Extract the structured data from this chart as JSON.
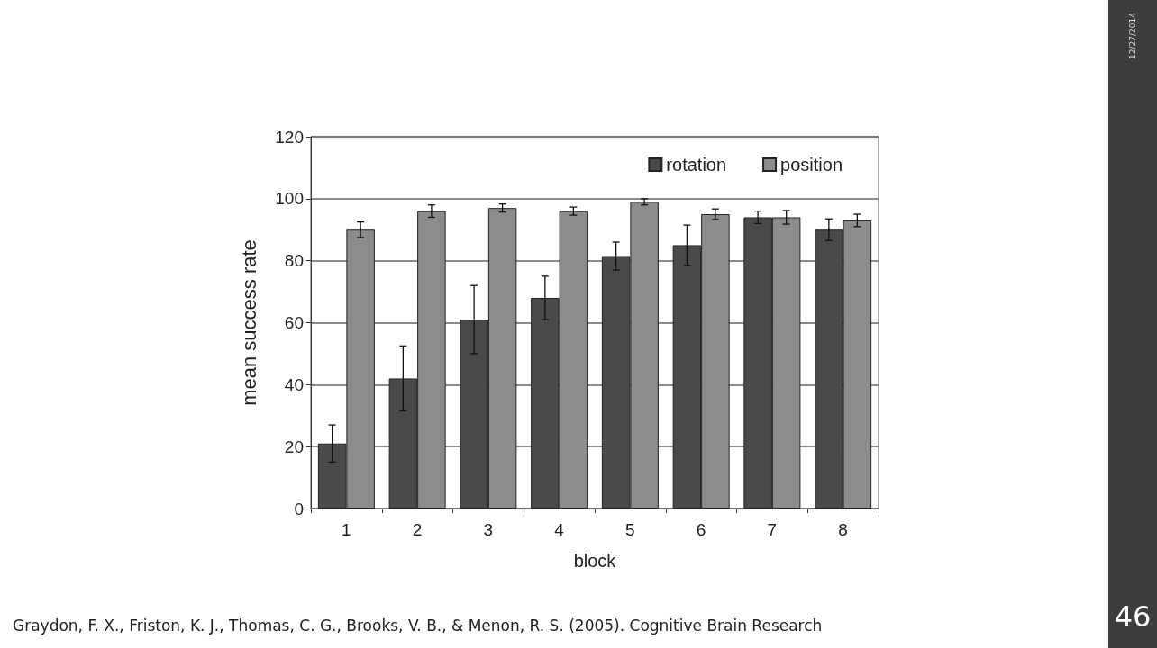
{
  "chart_data": {
    "type": "bar",
    "xlabel": "block",
    "ylabel": "mean success rate",
    "categories": [
      "1",
      "2",
      "3",
      "4",
      "5",
      "6",
      "7",
      "8"
    ],
    "series": [
      {
        "name": "rotation",
        "color": "#4a4a4a",
        "values": [
          21,
          42,
          61,
          68,
          81.5,
          85,
          94,
          90
        ],
        "errors": [
          6,
          10.5,
          11,
          7,
          4.5,
          6.5,
          2,
          3.5
        ]
      },
      {
        "name": "position",
        "color": "#8c8c8c",
        "values": [
          90,
          96,
          97,
          96,
          99,
          95,
          94,
          93
        ],
        "errors": [
          2.5,
          2,
          1.3,
          1.3,
          1,
          1.7,
          2.2,
          2
        ]
      }
    ],
    "ylim": [
      0,
      120
    ],
    "yticks": [
      0,
      20,
      40,
      60,
      80,
      100,
      120
    ],
    "grid": "y",
    "legend": "top right",
    "annotations": [
      "Graydon, F. X., Friston, K. J., Thomas, C. G., Brooks, V. B., & Menon, R. S. (2005). Cognitive Brain Research",
      "12/27/2014",
      "46"
    ]
  }
}
